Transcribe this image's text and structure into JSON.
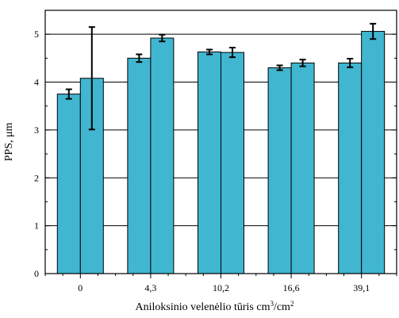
{
  "chart_data": {
    "type": "bar",
    "title": "",
    "xlabel_parts": [
      "Aniloksinio velenėlio tūris cm",
      "3",
      "/cm",
      "2"
    ],
    "ylabel": "PPS, μm",
    "categories": [
      "0",
      "4,3",
      "10,2",
      "16,6",
      "39,1"
    ],
    "ylim": [
      0,
      5.5
    ],
    "yticks": [
      "0",
      "1",
      "2",
      "3",
      "4",
      "5"
    ],
    "grid": true,
    "legend": "none",
    "series": [
      {
        "values": [
          3.75,
          4.5,
          4.63,
          4.3,
          4.4
        ],
        "errors": [
          0.1,
          0.08,
          0.05,
          0.05,
          0.09
        ]
      },
      {
        "values": [
          4.08,
          4.92,
          4.62,
          4.4,
          5.06
        ],
        "errors": [
          1.07,
          0.07,
          0.1,
          0.07,
          0.16
        ]
      }
    ],
    "colors": {
      "bar": "#41b6d0",
      "outline": "#000000",
      "grid": "#000000"
    }
  }
}
